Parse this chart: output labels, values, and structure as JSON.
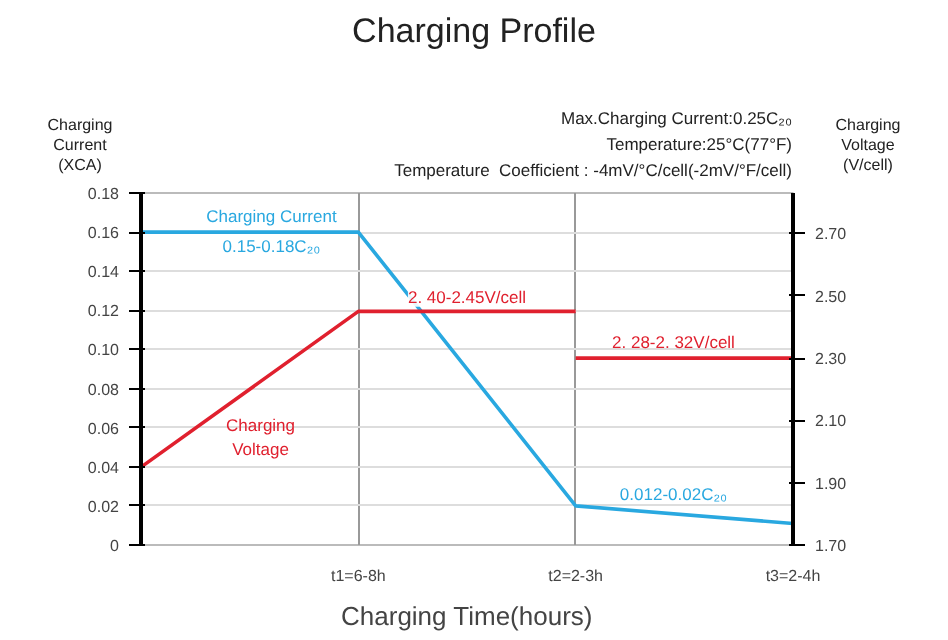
{
  "chart_data": {
    "type": "line",
    "title": "Charging Profile",
    "xlabel": "Charging Time(hours)",
    "ylabel": "Charging\nCurrent\n(XCA)",
    "y2label": "Charging\nVoltage\n(V/cell)",
    "categories": [
      null,
      "t1=6-8h",
      "t2=2-3h",
      "t3=2-4h"
    ],
    "ylim": [
      0,
      0.18
    ],
    "yticks": [
      0,
      {
        "value": 0.02,
        "label": "0.02"
      },
      {
        "value": 0.04,
        "label": "0.04"
      },
      {
        "value": 0.06,
        "label": "0.06"
      },
      {
        "value": 0.08,
        "label": "0.08"
      },
      {
        "value": 0.1,
        "label": "0.10"
      },
      {
        "value": 0.12,
        "label": "0.12"
      },
      {
        "value": 0.14,
        "label": "0.14"
      },
      {
        "value": 0.16,
        "label": "0.16"
      },
      {
        "value": 0.18,
        "label": "0.18"
      }
    ],
    "y2lim": [
      1.7,
      2.83
    ],
    "y2ticks": [
      {
        "value": 1.7,
        "label": "1.70"
      },
      {
        "value": 1.9,
        "label": "1.90"
      },
      {
        "value": 2.1,
        "label": "2.10"
      },
      {
        "value": 2.3,
        "label": "2.30"
      },
      {
        "value": 2.5,
        "label": "2.50"
      },
      {
        "value": 2.7,
        "label": "2.70"
      }
    ],
    "series": [
      {
        "color": "#29a8e0",
        "values": [
          0.16,
          0.16,
          0.02,
          0.011
        ]
      },
      {
        "color": "#e0202e",
        "axis": "y2",
        "values": [
          1.95,
          2.45,
          2.45,
          null
        ]
      },
      {
        "color": "#e0202e",
        "axis": "y2",
        "values": [
          null,
          null,
          2.3,
          2.3
        ]
      }
    ],
    "annotations": [
      "Max.Charging Current:0.25C₂₀",
      "Temperature:25°C(77°F)",
      "Temperature  Coefficient : -4mV/°C/cell(-2mV/°F/cell)",
      "Charging Current",
      "0.15-0.18C₂₀",
      "Charging\nVoltage",
      "2. 40-2.45V/cell",
      "2. 28-2. 32V/cell",
      "0.012-0.02C₂₀"
    ],
    "grid": "xy"
  }
}
